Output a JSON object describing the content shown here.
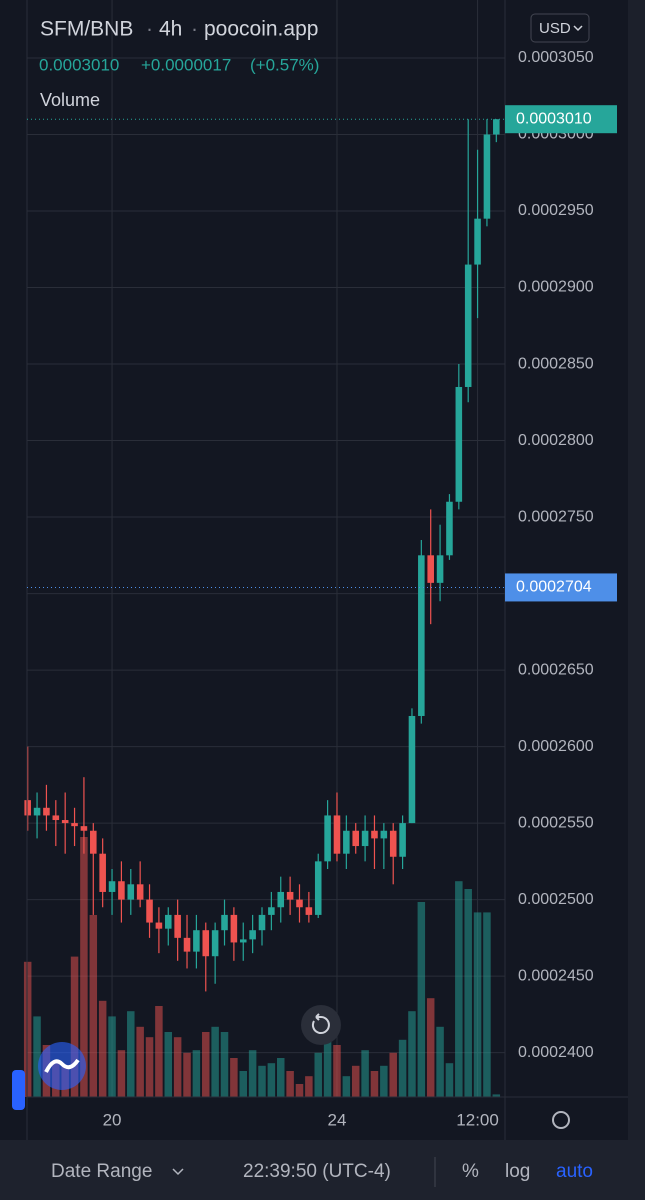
{
  "header": {
    "symbol": "SFM/BNB",
    "interval": "4h",
    "source": "poocoin.app",
    "price": "0.0003010",
    "change": "+0.0000017",
    "change_pct": "(+0.57%)",
    "study": "Volume",
    "currency": "USD"
  },
  "chart_data": {
    "type": "candlestick",
    "categories": [
      null,
      null,
      null,
      null,
      null,
      null,
      null,
      null,
      null,
      "20",
      null,
      null,
      null,
      null,
      null,
      null,
      null,
      null,
      null,
      null,
      null,
      null,
      null,
      null,
      null,
      null,
      null,
      null,
      null,
      null,
      null,
      null,
      null,
      "24",
      null,
      null,
      null,
      null,
      null,
      null,
      null,
      null,
      null,
      null,
      null,
      null,
      null,
      null,
      "12:00",
      null,
      null
    ],
    "open": [
      0.0002565,
      0.0002555,
      0.000256,
      0.0002555,
      0.0002552,
      0.000255,
      0.0002548,
      0.0002545,
      0.000253,
      0.0002505,
      0.0002512,
      0.00025,
      0.000251,
      0.00025,
      0.0002485,
      0.0002481,
      0.000249,
      0.0002475,
      0.0002466,
      0.000248,
      0.0002463,
      0.000248,
      0.000249,
      0.0002472,
      0.0002474,
      0.000248,
      0.000249,
      0.0002495,
      0.0002505,
      0.00025,
      0.0002495,
      0.000249,
      0.0002525,
      0.0002555,
      0.000253,
      0.0002545,
      0.0002535,
      0.0002545,
      0.000254,
      0.0002545,
      0.0002528,
      0.000255,
      0.000262,
      0.0002725,
      0.0002707,
      0.0002725,
      0.000276,
      0.0002835,
      0.0002915,
      0.0002945,
      0.0003
    ],
    "high": [
      0.00026,
      0.000257,
      0.0002575,
      0.0002565,
      0.000257,
      0.000256,
      0.000258,
      0.000255,
      0.000254,
      0.000252,
      0.0002525,
      0.000252,
      0.0002525,
      0.000251,
      0.0002495,
      0.0002495,
      0.00025,
      0.000249,
      0.000249,
      0.0002485,
      0.0002485,
      0.00025,
      0.0002495,
      0.0002485,
      0.000249,
      0.0002495,
      0.0002505,
      0.0002515,
      0.0002515,
      0.000251,
      0.0002505,
      0.000253,
      0.0002565,
      0.000257,
      0.0002555,
      0.000255,
      0.0002555,
      0.0002555,
      0.000255,
      0.000255,
      0.0002555,
      0.0002625,
      0.0002735,
      0.0002755,
      0.0002745,
      0.0002765,
      0.000285,
      0.000301,
      0.000299,
      0.000301,
      0.000301
    ],
    "low": [
      0.0002545,
      0.000254,
      0.0002545,
      0.0002535,
      0.000253,
      0.0002535,
      0.000253,
      0.000249,
      0.0002495,
      0.000249,
      0.0002485,
      0.000249,
      0.0002495,
      0.0002475,
      0.0002465,
      0.000247,
      0.000246,
      0.0002455,
      0.0002455,
      0.000244,
      0.0002445,
      0.000247,
      0.000246,
      0.000246,
      0.0002465,
      0.000247,
      0.000248,
      0.0002485,
      0.000249,
      0.0002485,
      0.0002485,
      0.0002488,
      0.000252,
      0.0002525,
      0.000252,
      0.000253,
      0.0002525,
      0.000252,
      0.000252,
      0.000251,
      0.000252,
      0.000255,
      0.0002615,
      0.000268,
      0.0002695,
      0.0002722,
      0.0002755,
      0.0002825,
      0.000288,
      0.000294,
      0.0002995
    ],
    "close": [
      0.0002555,
      0.000256,
      0.0002555,
      0.0002552,
      0.000255,
      0.0002548,
      0.0002545,
      0.000253,
      0.0002505,
      0.0002512,
      0.00025,
      0.000251,
      0.00025,
      0.0002485,
      0.0002481,
      0.000249,
      0.0002475,
      0.0002466,
      0.000248,
      0.0002463,
      0.000248,
      0.000249,
      0.0002472,
      0.0002474,
      0.000248,
      0.000249,
      0.0002495,
      0.0002505,
      0.00025,
      0.0002495,
      0.000249,
      0.0002525,
      0.0002555,
      0.000253,
      0.0002545,
      0.0002535,
      0.0002545,
      0.000254,
      0.0002545,
      0.0002528,
      0.000255,
      0.000262,
      0.0002725,
      0.0002707,
      0.0002725,
      0.000276,
      0.0002835,
      0.0002915,
      0.0002945,
      0.0003,
      0.000301
    ],
    "volume": [
      52,
      31,
      20,
      14,
      12,
      54,
      100,
      70,
      37,
      31,
      18,
      33,
      27,
      23,
      35,
      25,
      23,
      17,
      18,
      25,
      27,
      25,
      15,
      10,
      18,
      12,
      13,
      15,
      10,
      5,
      8,
      17,
      25,
      20,
      8,
      12,
      18,
      10,
      12,
      17,
      22,
      33,
      75,
      38,
      27,
      13,
      83,
      80,
      71,
      71,
      1
    ],
    "volume_ylim": [
      0,
      100
    ],
    "up_color": "#26a69a",
    "down_color": "#ef5350",
    "ylim": [
      0.0002371,
      0.00030879
    ],
    "yticks": [
      {
        "value": 0.00024,
        "label": "0.0002400"
      },
      {
        "value": 0.000245,
        "label": "0.0002450"
      },
      {
        "value": 0.00025,
        "label": "0.0002500"
      },
      {
        "value": 0.000255,
        "label": "0.0002550"
      },
      {
        "value": 0.00026,
        "label": "0.0002600"
      },
      {
        "value": 0.000265,
        "label": "0.0002650"
      },
      {
        "value": 0.00027,
        "label": "0.0002700"
      },
      {
        "value": 0.000275,
        "label": "0.0002750"
      },
      {
        "value": 0.00028,
        "label": "0.0002800"
      },
      {
        "value": 0.000285,
        "label": "0.0002850"
      },
      {
        "value": 0.00029,
        "label": "0.0002900"
      },
      {
        "value": 0.000295,
        "label": "0.0002950"
      },
      {
        "value": 0.0003,
        "label": "0.0003000"
      },
      {
        "value": 0.000305,
        "label": "0.0003050"
      }
    ],
    "price_lines": [
      {
        "value": 0.000301,
        "label": "0.0003010",
        "color": "#26a69a"
      },
      {
        "value": 0.0002704,
        "label": "0.0002704",
        "color": "#4e8fe8"
      }
    ],
    "grid": true
  },
  "footer": {
    "range": "Date Range",
    "time": "22:39:50 (UTC-4)",
    "percent": "%",
    "log": "log",
    "auto": "auto"
  }
}
